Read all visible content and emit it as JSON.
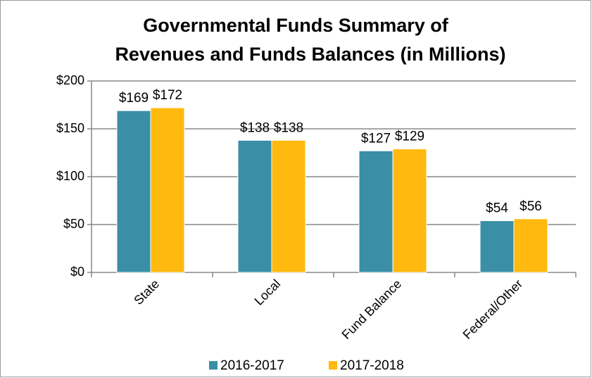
{
  "chart_data": {
    "type": "bar",
    "title": [
      "Governmental Funds Summary of",
      "Revenues and Funds Balances (in Millions)"
    ],
    "categories": [
      "State",
      "Local",
      "Fund Balance",
      "Federal/Other"
    ],
    "series": [
      {
        "name": "2016-2017",
        "color": "#3a8fa6",
        "values": [
          169,
          138,
          127,
          54
        ],
        "value_labels": [
          "$169",
          "$138",
          "$127",
          "$54"
        ]
      },
      {
        "name": "2017-2018",
        "color": "#ffb90f",
        "values": [
          172,
          138,
          129,
          56
        ],
        "value_labels": [
          "$172",
          "$138",
          "$129",
          "$56"
        ]
      }
    ],
    "ylim": [
      0,
      200
    ],
    "yticks": [
      {
        "value": 0,
        "label": "$0"
      },
      {
        "value": 50,
        "label": "$50"
      },
      {
        "value": 100,
        "label": "$100"
      },
      {
        "value": 150,
        "label": "$150"
      },
      {
        "value": 200,
        "label": "$200"
      }
    ],
    "grid": true,
    "legend": "bottom"
  }
}
